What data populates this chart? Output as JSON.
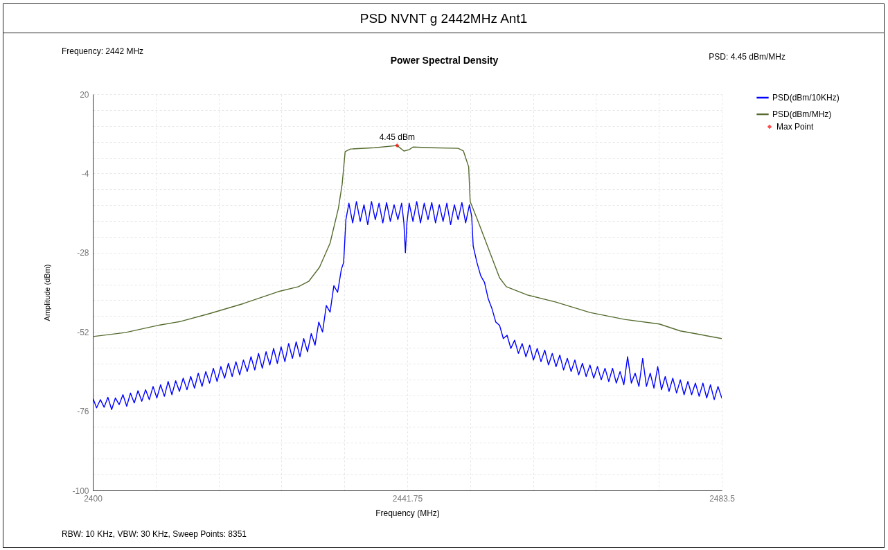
{
  "chart_data": {
    "type": "line",
    "title": "PSD NVNT g 2442MHz Ant1",
    "subtitle": "Power Spectral Density",
    "xlabel": "Frequency (MHz)",
    "ylabel": "Amplitude (dBm)",
    "annotations": [
      "Frequency: 2442 MHz",
      "PSD: 4.45 dBm/MHz",
      "RBW: 10 KHz,  VBW: 30 KHz,  Sweep Points: 8351",
      {
        "text": "4.45 dBm",
        "x": 2440.4,
        "y": 4.45
      }
    ],
    "xlim": [
      2400,
      2483.5
    ],
    "xticks": [
      2400,
      {
        "value": 2408.35,
        "label": null
      },
      {
        "value": 2416.7,
        "label": null
      },
      {
        "value": 2425.05,
        "label": null
      },
      {
        "value": 2433.4,
        "label": null
      },
      2441.75,
      {
        "value": 2450.1,
        "label": null
      },
      {
        "value": 2458.45,
        "label": null
      },
      {
        "value": 2466.8,
        "label": null
      },
      {
        "value": 2475.15,
        "label": null
      },
      2483.5
    ],
    "ylim": [
      -100,
      20
    ],
    "yticks": [
      -100,
      {
        "value": -95.2,
        "label": null
      },
      {
        "value": -90.4,
        "label": null
      },
      {
        "value": -85.6,
        "label": null
      },
      {
        "value": -80.8,
        "label": null
      },
      -76,
      {
        "value": -71.2,
        "label": null
      },
      {
        "value": -66.4,
        "label": null
      },
      {
        "value": -61.6,
        "label": null
      },
      {
        "value": -56.8,
        "label": null
      },
      -52,
      {
        "value": -47.2,
        "label": null
      },
      {
        "value": -42.4,
        "label": null
      },
      {
        "value": -37.6,
        "label": null
      },
      {
        "value": -32.8,
        "label": null
      },
      -28,
      {
        "value": -23.2,
        "label": null
      },
      {
        "value": -18.4,
        "label": null
      },
      {
        "value": -13.6,
        "label": null
      },
      {
        "value": -8.8,
        "label": null
      },
      -4,
      {
        "value": 0.8,
        "label": null
      },
      {
        "value": 5.6,
        "label": null
      },
      {
        "value": 10.4,
        "label": null
      },
      {
        "value": 15.2,
        "label": null
      },
      20
    ],
    "grid": true,
    "legend": "top right",
    "line_style": "solid",
    "series": [
      {
        "name": "PSD(dBm/10KHz)",
        "color": "#0000ff",
        "x": [
          2400,
          2400.5,
          2401,
          2401.5,
          2402,
          2402.5,
          2403,
          2403.5,
          2404,
          2404.5,
          2405,
          2405.5,
          2406,
          2406.5,
          2407,
          2407.5,
          2408,
          2408.5,
          2409,
          2409.5,
          2410,
          2410.5,
          2411,
          2411.5,
          2412,
          2412.5,
          2413,
          2413.5,
          2414,
          2414.5,
          2415,
          2415.5,
          2416,
          2416.5,
          2417,
          2417.5,
          2418,
          2418.5,
          2419,
          2419.5,
          2420,
          2420.5,
          2421,
          2421.5,
          2422,
          2422.5,
          2423,
          2423.5,
          2424,
          2424.5,
          2425,
          2425.5,
          2426,
          2426.5,
          2427,
          2427.5,
          2428,
          2428.5,
          2429,
          2429.5,
          2430,
          2430.5,
          2431,
          2431.5,
          2432,
          2432.5,
          2433,
          2433.3,
          2433.6,
          2434,
          2434.5,
          2435,
          2435.5,
          2436,
          2436.5,
          2437,
          2437.5,
          2438,
          2438.5,
          2439,
          2439.5,
          2440,
          2440.5,
          2441,
          2441.3,
          2441.5,
          2441.7,
          2442,
          2442.5,
          2443,
          2443.5,
          2444,
          2444.5,
          2445,
          2445.5,
          2446,
          2446.5,
          2447,
          2447.5,
          2448,
          2448.5,
          2449,
          2449.5,
          2450,
          2450.3,
          2450.5,
          2451,
          2451.5,
          2452,
          2452.5,
          2453,
          2453.5,
          2454,
          2454.5,
          2455,
          2455.5,
          2456,
          2456.5,
          2457,
          2457.5,
          2458,
          2458.5,
          2459,
          2459.5,
          2460,
          2460.5,
          2461,
          2461.5,
          2462,
          2462.5,
          2463,
          2463.5,
          2464,
          2464.5,
          2465,
          2465.5,
          2466,
          2466.5,
          2467,
          2467.5,
          2468,
          2468.5,
          2469,
          2469.5,
          2470,
          2470.5,
          2471,
          2471.5,
          2472,
          2472.5,
          2473,
          2473.5,
          2474,
          2474.5,
          2475,
          2475.5,
          2476,
          2476.5,
          2477,
          2477.5,
          2478,
          2478.5,
          2479,
          2479.5,
          2480,
          2480.5,
          2481,
          2481.5,
          2482,
          2482.5,
          2483,
          2483.5
        ],
        "values": [
          -72.0,
          -75.0,
          -72.5,
          -74.8,
          -71.8,
          -75.5,
          -72.0,
          -74.0,
          -71.0,
          -74.5,
          -70.5,
          -73.5,
          -69.8,
          -73.0,
          -69.5,
          -72.5,
          -68.5,
          -72.0,
          -68.0,
          -71.5,
          -67.0,
          -71.0,
          -66.8,
          -70.0,
          -66.0,
          -69.5,
          -65.5,
          -69.0,
          -64.5,
          -68.5,
          -64.0,
          -67.5,
          -63.0,
          -67.0,
          -62.5,
          -66.0,
          -61.5,
          -65.5,
          -61.0,
          -65.0,
          -60.5,
          -64.0,
          -59.5,
          -63.5,
          -58.5,
          -63.0,
          -58.0,
          -62.0,
          -57.0,
          -61.5,
          -56.5,
          -61.0,
          -55.5,
          -60.0,
          -55.0,
          -59.5,
          -54.0,
          -58.0,
          -52.5,
          -56.0,
          -49.0,
          -52.0,
          -44.0,
          -46.0,
          -38.0,
          -40.0,
          -33.0,
          -31.0,
          -18.0,
          -13.0,
          -19.0,
          -12.5,
          -18.5,
          -13.5,
          -19.5,
          -12.5,
          -18.0,
          -13.0,
          -19.0,
          -12.8,
          -18.5,
          -13.5,
          -18.0,
          -13.0,
          -19.0,
          -28.0,
          -19.0,
          -13.0,
          -18.5,
          -12.5,
          -19.0,
          -13.0,
          -18.0,
          -12.8,
          -19.0,
          -13.5,
          -18.5,
          -13.0,
          -19.5,
          -13.5,
          -18.0,
          -12.8,
          -19.0,
          -13.5,
          -17.0,
          -26.0,
          -31.0,
          -35.0,
          -37.0,
          -42.0,
          -45.0,
          -49.0,
          -50.0,
          -54.0,
          -53.0,
          -57.0,
          -54.5,
          -58.5,
          -55.5,
          -59.5,
          -56.0,
          -60.5,
          -57.0,
          -61.0,
          -57.5,
          -62.0,
          -58.5,
          -62.5,
          -59.0,
          -63.5,
          -60.0,
          -64.0,
          -60.5,
          -65.0,
          -61.5,
          -65.5,
          -62.0,
          -66.0,
          -62.5,
          -66.5,
          -63.0,
          -67.0,
          -63.0,
          -67.5,
          -64.0,
          -68.0,
          -59.5,
          -67.5,
          -64.5,
          -68.5,
          -60.0,
          -68.5,
          -64.5,
          -69.0,
          -62.5,
          -69.5,
          -65.5,
          -70.0,
          -66.0,
          -70.5,
          -66.5,
          -71.0,
          -67.0,
          -71.0,
          -67.5,
          -71.5,
          -67.5,
          -72.0,
          -68.0,
          -72.5,
          -68.5,
          -72.0
        ]
      },
      {
        "name": "PSD(dBm/MHz)",
        "color": "#556b2f",
        "x": [
          2400,
          2404.3,
          2408.9,
          2411.7,
          2415.4,
          2420,
          2424.6,
          2427.3,
          2428.7,
          2430.1,
          2431.5,
          2432.6,
          2433.1,
          2433.5,
          2434.2,
          2437.4,
          2440.4,
          2441.3,
          2442,
          2442.5,
          2444.8,
          2448.5,
          2449.2,
          2449.9,
          2450.1,
          2451.2,
          2452.6,
          2454,
          2454.9,
          2457.7,
          2461.4,
          2466,
          2470.6,
          2475.2,
          2478,
          2483.5
        ],
        "values": [
          -53.4,
          -52.2,
          -49.9,
          -48.8,
          -46.5,
          -43.4,
          -39.8,
          -38.3,
          -36.6,
          -32.4,
          -25.1,
          -14.6,
          -7.3,
          2.6,
          3.4,
          3.8,
          4.45,
          2.8,
          3.2,
          4.0,
          3.8,
          3.6,
          2.8,
          -2.0,
          -12.5,
          -18.8,
          -27.2,
          -35.6,
          -38.3,
          -40.8,
          -42.9,
          -46.1,
          -48.2,
          -49.6,
          -51.7,
          -54.0
        ]
      },
      {
        "name": "Max Point",
        "type": "scatter",
        "color": "#ff0000",
        "marker": "diamond",
        "x": [
          2440.4
        ],
        "values": [
          4.45
        ]
      }
    ]
  }
}
